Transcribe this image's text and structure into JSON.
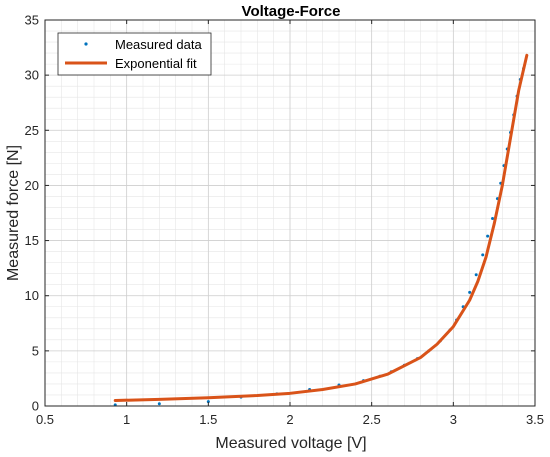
{
  "chart_data": {
    "type": "scatter",
    "title": "Voltage-Force",
    "xlabel": "Measured voltage [V]",
    "ylabel": "Measured force [N]",
    "xlim": [
      0.5,
      3.5
    ],
    "ylim": [
      0,
      35
    ],
    "x_ticks": [
      "0.5",
      "1",
      "1.5",
      "2",
      "2.5",
      "3",
      "3.5"
    ],
    "y_ticks": [
      "0",
      "5",
      "10",
      "15",
      "20",
      "25",
      "30",
      "35"
    ],
    "grid": true,
    "minor_grid": true,
    "legend_position": "top-left",
    "series": [
      {
        "name": "Measured data",
        "kind": "scatter",
        "color": "#0072BD",
        "x": [
          0.93,
          1.2,
          1.5,
          1.7,
          1.92,
          2.12,
          2.3,
          2.45,
          2.55,
          2.62,
          2.7,
          2.78,
          2.85,
          2.92,
          2.98,
          3.02,
          3.06,
          3.1,
          3.14,
          3.18,
          3.21,
          3.24,
          3.27,
          3.29,
          3.31,
          3.33,
          3.35,
          3.37,
          3.39,
          3.41,
          3.43
        ],
        "y": [
          0.1,
          0.2,
          0.4,
          0.8,
          1.1,
          1.5,
          1.9,
          2.3,
          2.7,
          3.1,
          3.7,
          4.3,
          5.0,
          5.9,
          6.9,
          7.8,
          9.0,
          10.3,
          11.9,
          13.7,
          15.4,
          17.0,
          18.8,
          20.2,
          21.8,
          23.3,
          24.8,
          26.4,
          28.1,
          29.6,
          30.6
        ]
      },
      {
        "name": "Exponential fit",
        "kind": "line",
        "color": "#D95319",
        "x": [
          0.93,
          1.2,
          1.5,
          1.8,
          2.0,
          2.2,
          2.4,
          2.6,
          2.8,
          2.9,
          3.0,
          3.1,
          3.15,
          3.2,
          3.25,
          3.3,
          3.35,
          3.4,
          3.45
        ],
        "y": [
          0.5,
          0.6,
          0.75,
          0.95,
          1.15,
          1.5,
          2.0,
          2.9,
          4.4,
          5.6,
          7.2,
          9.6,
          11.3,
          13.5,
          16.5,
          20.0,
          24.3,
          28.6,
          31.8
        ]
      }
    ]
  }
}
